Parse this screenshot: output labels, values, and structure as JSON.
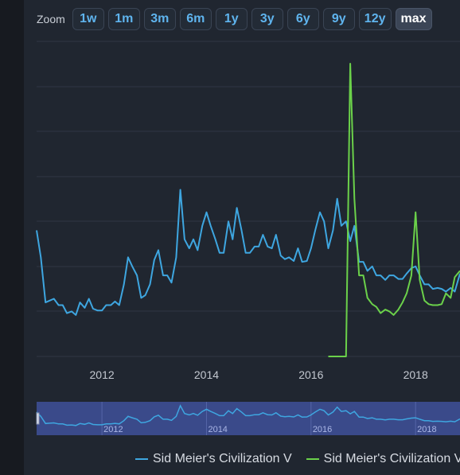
{
  "zoom": {
    "label": "Zoom",
    "buttons": [
      "1w",
      "1m",
      "3m",
      "6m",
      "1y",
      "3y",
      "6y",
      "9y",
      "12y",
      "max"
    ],
    "active": "max"
  },
  "colors": {
    "series_civ5": "#3ea6e0",
    "series_civ6": "#6bd14a",
    "grid": "#2f3743",
    "axis_text": "#c3c8d0",
    "navigator_fill": "#3a4a8a"
  },
  "chart_data": {
    "type": "line",
    "xlabel": "",
    "ylabel": "",
    "grid": true,
    "legend": "bottom",
    "x_ticks": [
      2012,
      2014,
      2016,
      2018
    ],
    "navigator_ticks": [
      "2012",
      "2014",
      "2016",
      "2018"
    ],
    "series": [
      {
        "name": "Sid Meier's Civilization V",
        "points": [
          [
            2010.75,
            1.4
          ],
          [
            2010.83,
            1.1
          ],
          [
            2010.92,
            0.6
          ],
          [
            2011.0,
            0.62
          ],
          [
            2011.08,
            0.64
          ],
          [
            2011.17,
            0.57
          ],
          [
            2011.25,
            0.57
          ],
          [
            2011.33,
            0.48
          ],
          [
            2011.42,
            0.5
          ],
          [
            2011.5,
            0.46
          ],
          [
            2011.58,
            0.6
          ],
          [
            2011.67,
            0.54
          ],
          [
            2011.75,
            0.64
          ],
          [
            2011.83,
            0.53
          ],
          [
            2011.92,
            0.51
          ],
          [
            2012.0,
            0.51
          ],
          [
            2012.08,
            0.57
          ],
          [
            2012.17,
            0.57
          ],
          [
            2012.25,
            0.61
          ],
          [
            2012.33,
            0.57
          ],
          [
            2012.42,
            0.8
          ],
          [
            2012.5,
            1.1
          ],
          [
            2012.58,
            1.0
          ],
          [
            2012.67,
            0.9
          ],
          [
            2012.75,
            0.65
          ],
          [
            2012.83,
            0.68
          ],
          [
            2012.92,
            0.8
          ],
          [
            2013.0,
            1.07
          ],
          [
            2013.08,
            1.18
          ],
          [
            2013.17,
            0.9
          ],
          [
            2013.25,
            0.9
          ],
          [
            2013.33,
            0.82
          ],
          [
            2013.42,
            1.1
          ],
          [
            2013.5,
            1.85
          ],
          [
            2013.58,
            1.3
          ],
          [
            2013.67,
            1.2
          ],
          [
            2013.75,
            1.3
          ],
          [
            2013.83,
            1.18
          ],
          [
            2013.92,
            1.45
          ],
          [
            2014.0,
            1.6
          ],
          [
            2014.08,
            1.45
          ],
          [
            2014.17,
            1.3
          ],
          [
            2014.25,
            1.15
          ],
          [
            2014.33,
            1.15
          ],
          [
            2014.42,
            1.5
          ],
          [
            2014.5,
            1.3
          ],
          [
            2014.58,
            1.65
          ],
          [
            2014.67,
            1.4
          ],
          [
            2014.75,
            1.15
          ],
          [
            2014.83,
            1.15
          ],
          [
            2014.92,
            1.22
          ],
          [
            2015.0,
            1.22
          ],
          [
            2015.08,
            1.35
          ],
          [
            2015.17,
            1.22
          ],
          [
            2015.25,
            1.2
          ],
          [
            2015.33,
            1.35
          ],
          [
            2015.42,
            1.12
          ],
          [
            2015.5,
            1.08
          ],
          [
            2015.58,
            1.1
          ],
          [
            2015.67,
            1.06
          ],
          [
            2015.75,
            1.2
          ],
          [
            2015.83,
            1.05
          ],
          [
            2015.92,
            1.06
          ],
          [
            2016.0,
            1.2
          ],
          [
            2016.08,
            1.4
          ],
          [
            2016.17,
            1.6
          ],
          [
            2016.25,
            1.5
          ],
          [
            2016.33,
            1.2
          ],
          [
            2016.42,
            1.4
          ],
          [
            2016.5,
            1.75
          ],
          [
            2016.58,
            1.45
          ],
          [
            2016.67,
            1.5
          ],
          [
            2016.75,
            1.28
          ],
          [
            2016.83,
            1.45
          ],
          [
            2016.92,
            1.05
          ],
          [
            2017.0,
            1.05
          ],
          [
            2017.08,
            0.95
          ],
          [
            2017.17,
            1.0
          ],
          [
            2017.25,
            0.9
          ],
          [
            2017.33,
            0.9
          ],
          [
            2017.42,
            0.85
          ],
          [
            2017.5,
            0.9
          ],
          [
            2017.58,
            0.9
          ],
          [
            2017.67,
            0.86
          ],
          [
            2017.75,
            0.86
          ],
          [
            2017.83,
            0.92
          ],
          [
            2017.92,
            0.98
          ],
          [
            2018.0,
            1.0
          ],
          [
            2018.08,
            0.9
          ],
          [
            2018.17,
            0.8
          ],
          [
            2018.25,
            0.8
          ],
          [
            2018.33,
            0.75
          ],
          [
            2018.42,
            0.76
          ],
          [
            2018.5,
            0.75
          ],
          [
            2018.58,
            0.72
          ],
          [
            2018.67,
            0.76
          ],
          [
            2018.75,
            0.72
          ],
          [
            2018.85,
            0.92
          ]
        ]
      },
      {
        "name": "Sid Meier's Civilization VI",
        "points": [
          [
            2016.33,
            0.0
          ],
          [
            2016.67,
            0.0
          ],
          [
            2016.75,
            3.25
          ],
          [
            2016.83,
            1.75
          ],
          [
            2016.92,
            0.9
          ],
          [
            2017.0,
            0.9
          ],
          [
            2017.08,
            0.65
          ],
          [
            2017.17,
            0.58
          ],
          [
            2017.25,
            0.55
          ],
          [
            2017.33,
            0.48
          ],
          [
            2017.42,
            0.52
          ],
          [
            2017.5,
            0.5
          ],
          [
            2017.58,
            0.46
          ],
          [
            2017.67,
            0.52
          ],
          [
            2017.75,
            0.6
          ],
          [
            2017.83,
            0.7
          ],
          [
            2017.92,
            0.9
          ],
          [
            2018.0,
            1.6
          ],
          [
            2018.08,
            0.85
          ],
          [
            2018.17,
            0.62
          ],
          [
            2018.25,
            0.58
          ],
          [
            2018.33,
            0.57
          ],
          [
            2018.42,
            0.57
          ],
          [
            2018.5,
            0.58
          ],
          [
            2018.58,
            0.7
          ],
          [
            2018.67,
            0.65
          ],
          [
            2018.75,
            0.88
          ],
          [
            2018.85,
            0.95
          ]
        ]
      }
    ]
  }
}
